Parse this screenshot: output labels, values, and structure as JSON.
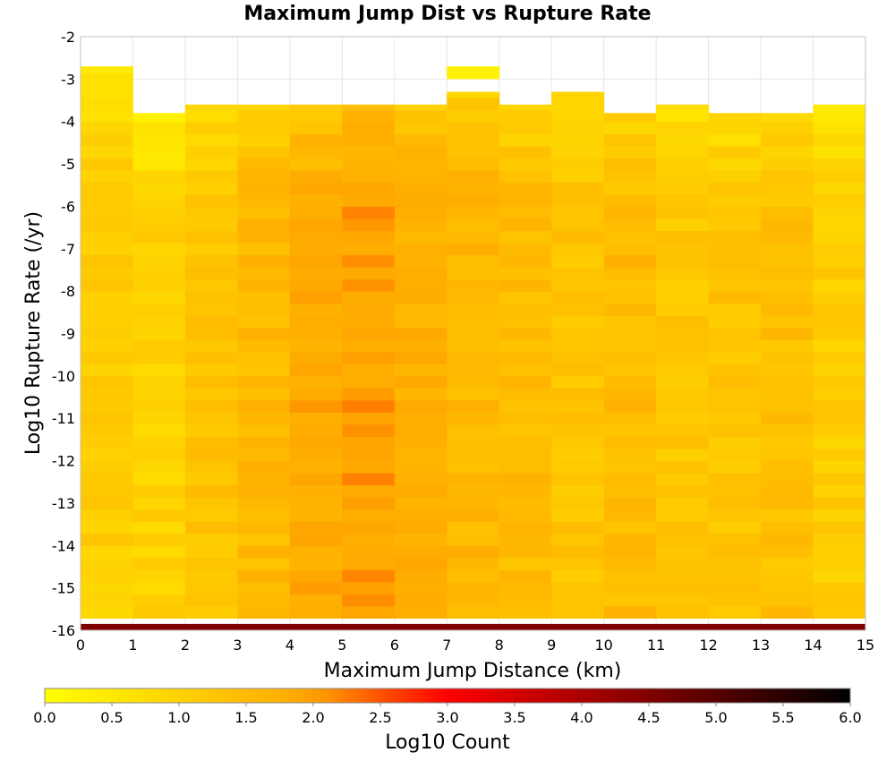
{
  "chart_data": {
    "type": "heatmap",
    "title": "Maximum Jump Dist vs Rupture Rate",
    "xlabel": "Maximum Jump Distance (km)",
    "ylabel": "Log10 Rupture Rate (/yr)",
    "xlim": [
      0,
      15
    ],
    "ylim": [
      -16,
      -2
    ],
    "x_ticks": [
      "0",
      "1",
      "2",
      "3",
      "4",
      "5",
      "6",
      "7",
      "8",
      "9",
      "10",
      "11",
      "12",
      "13",
      "14",
      "15"
    ],
    "y_ticks": [
      "-2",
      "-3",
      "-4",
      "-5",
      "-6",
      "-7",
      "-8",
      "-9",
      "-10",
      "-11",
      "-12",
      "-13",
      "-14",
      "-15",
      "-16"
    ],
    "bin_size_y": 0.2857,
    "colorbar": {
      "label": "Log10 Count",
      "range": [
        0,
        6
      ],
      "ticks": [
        "0.0",
        "0.5",
        "1.0",
        "1.5",
        "2.0",
        "2.5",
        "3.0",
        "3.5",
        "4.0",
        "4.5",
        "5.0",
        "5.5",
        "6.0"
      ],
      "colors": [
        "#ffff00",
        "#ffa500",
        "#ff0000",
        "#000000"
      ],
      "color_stops": [
        0,
        0.333,
        0.5,
        1
      ]
    },
    "columns": [
      {
        "x": 0.5,
        "top": -2.7,
        "base": 1.1
      },
      {
        "x": 1.5,
        "top": -3.8,
        "base": 1.0
      },
      {
        "x": 2.5,
        "top": -3.6,
        "base": 1.3
      },
      {
        "x": 3.5,
        "top": -3.6,
        "base": 1.55
      },
      {
        "x": 4.5,
        "top": -3.6,
        "base": 1.85
      },
      {
        "x": 5.5,
        "top": -3.6,
        "base": 2.0
      },
      {
        "x": 6.5,
        "top": -3.6,
        "base": 1.75
      },
      {
        "x": 7.5,
        "top": -3.3,
        "base": 1.6,
        "island": [
          -3.0,
          -2.7
        ]
      },
      {
        "x": 8.5,
        "top": -3.6,
        "base": 1.5
      },
      {
        "x": 9.5,
        "top": -3.3,
        "base": 1.3
      },
      {
        "x": 10.5,
        "top": -3.8,
        "base": 1.5
      },
      {
        "x": 11.5,
        "top": -3.6,
        "base": 1.25
      },
      {
        "x": 12.5,
        "top": -3.8,
        "base": 1.3
      },
      {
        "x": 13.5,
        "top": -3.8,
        "base": 1.4
      },
      {
        "x": 14.5,
        "top": -3.6,
        "base": 1.1
      }
    ],
    "bottom_row": {
      "y": -16,
      "value": 4.5
    }
  }
}
